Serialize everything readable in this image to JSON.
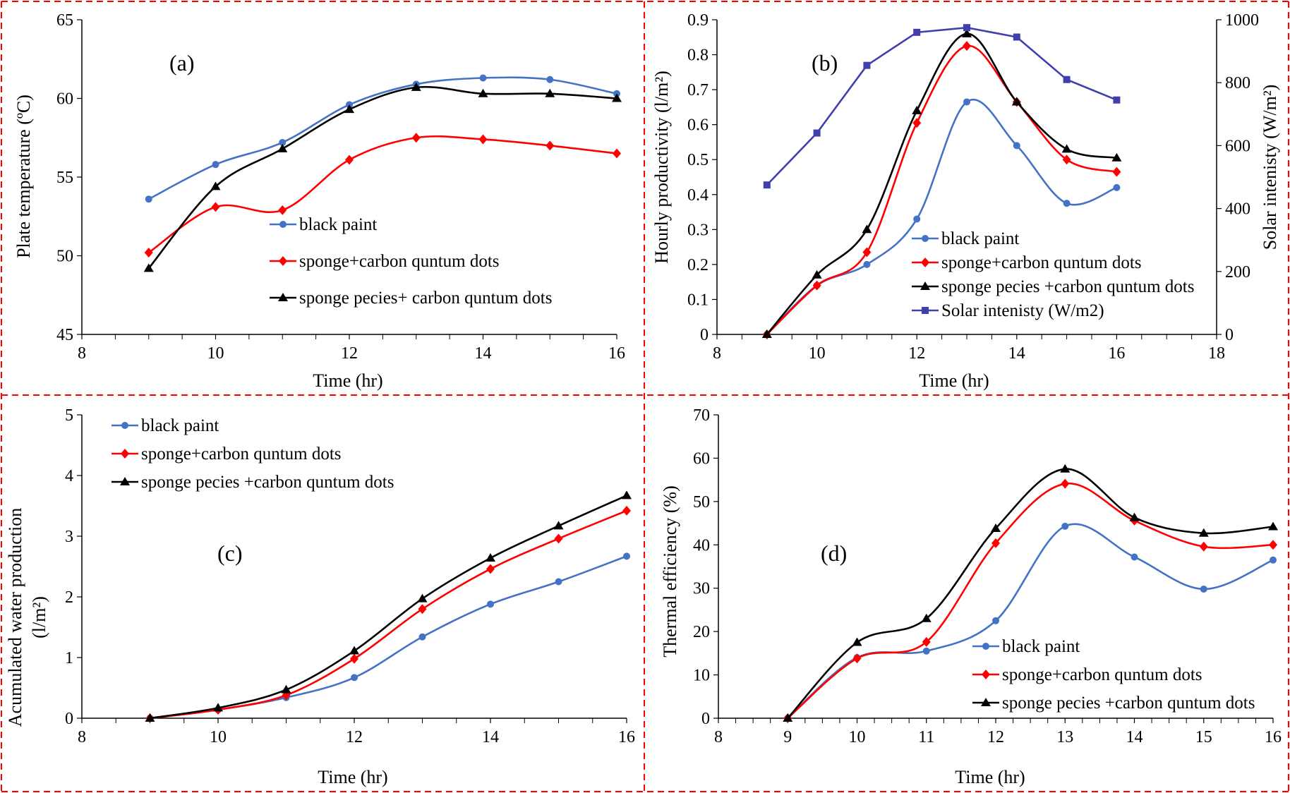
{
  "colors": {
    "blue": "#4472c4",
    "red": "#ff0000",
    "black": "#000000",
    "purple": "#3f3fad",
    "frame": "#ff0000"
  },
  "chart_data": [
    {
      "id": "a",
      "type": "line",
      "panel_label": "(a)",
      "xlabel": "Time (hr)",
      "ylabel": "Plate  temperature (ºC)",
      "xlim": [
        8,
        16
      ],
      "xticks": [
        8,
        10,
        12,
        14,
        16
      ],
      "ylim": [
        45,
        65
      ],
      "yticks": [
        45,
        50,
        55,
        60,
        65
      ],
      "grid": false,
      "legend_position": "center",
      "series": [
        {
          "name": "black paint",
          "color": "#4472c4",
          "marker": "circle",
          "x": [
            9,
            10,
            11,
            12,
            13,
            14,
            15,
            16
          ],
          "y": [
            53.6,
            55.8,
            57.2,
            59.6,
            60.9,
            61.3,
            61.2,
            60.3
          ]
        },
        {
          "name": "sponge+carbon quntum dots",
          "color": "#ff0000",
          "marker": "diamond",
          "x": [
            9,
            10,
            11,
            12,
            13,
            14,
            15,
            16
          ],
          "y": [
            50.2,
            53.1,
            52.9,
            56.1,
            57.5,
            57.4,
            57.0,
            56.5
          ]
        },
        {
          "name": "sponge pecies+ carbon quntum dots",
          "color": "#000000",
          "marker": "triangle",
          "x": [
            9,
            10,
            11,
            12,
            13,
            14,
            15,
            16
          ],
          "y": [
            49.2,
            54.4,
            56.8,
            59.3,
            60.7,
            60.3,
            60.3,
            60.0
          ]
        }
      ]
    },
    {
      "id": "b",
      "type": "line",
      "panel_label": "(b)",
      "xlabel": "Time (hr)",
      "ylabel": "Hourly productivity (l/m²)",
      "y2label": "Solar intenisty (W/m²)",
      "xlim": [
        8,
        18
      ],
      "xticks": [
        8,
        10,
        12,
        14,
        16,
        18
      ],
      "ylim": [
        0,
        0.9
      ],
      "yticks": [
        0,
        0.1,
        0.2,
        0.3,
        0.4,
        0.5,
        0.6,
        0.7,
        0.8,
        0.9
      ],
      "y2lim": [
        0,
        1000
      ],
      "y2ticks": [
        0,
        200,
        400,
        600,
        800,
        1000
      ],
      "grid": false,
      "legend_position": "bottom-center",
      "series": [
        {
          "name": "black paint",
          "color": "#4472c4",
          "marker": "circle",
          "axis": "left",
          "x": [
            9,
            10,
            11,
            12,
            13,
            14,
            15,
            16
          ],
          "y": [
            0,
            0.14,
            0.2,
            0.33,
            0.665,
            0.54,
            0.375,
            0.42
          ]
        },
        {
          "name": "sponge+carbon quntum dots",
          "color": "#ff0000",
          "marker": "diamond",
          "axis": "left",
          "x": [
            9,
            10,
            11,
            12,
            13,
            14,
            15,
            16
          ],
          "y": [
            0,
            0.14,
            0.235,
            0.605,
            0.825,
            0.665,
            0.5,
            0.465
          ]
        },
        {
          "name": "sponge pecies +carbon quntum dots",
          "color": "#000000",
          "marker": "triangle",
          "axis": "left",
          "x": [
            9,
            10,
            11,
            12,
            13,
            14,
            15,
            16
          ],
          "y": [
            0,
            0.17,
            0.3,
            0.64,
            0.86,
            0.665,
            0.53,
            0.505
          ]
        },
        {
          "name": "Solar intenisty (W/m2)",
          "color": "#3f3fad",
          "marker": "square",
          "axis": "right",
          "smooth": false,
          "x": [
            9,
            10,
            11,
            12,
            13,
            14,
            15,
            16
          ],
          "y": [
            475,
            640,
            855,
            960,
            975,
            945,
            810,
            745
          ]
        }
      ]
    },
    {
      "id": "c",
      "type": "line",
      "panel_label": "(c)",
      "xlabel": "Time (hr)",
      "ylabel_line1": "Acumulated water production",
      "ylabel_line2": "(l/m²)",
      "xlim": [
        8,
        16
      ],
      "xticks": [
        8,
        10,
        12,
        14,
        16
      ],
      "ylim": [
        0,
        5
      ],
      "yticks": [
        0,
        1,
        2,
        3,
        4,
        5
      ],
      "grid": false,
      "legend_position": "top-left",
      "series": [
        {
          "name": "black paint",
          "color": "#4472c4",
          "marker": "circle",
          "x": [
            9,
            10,
            11,
            12,
            13,
            14,
            15,
            16
          ],
          "y": [
            0,
            0.14,
            0.34,
            0.67,
            1.34,
            1.88,
            2.25,
            2.67
          ]
        },
        {
          "name": "sponge+carbon quntum dots",
          "color": "#ff0000",
          "marker": "diamond",
          "x": [
            9,
            10,
            11,
            12,
            13,
            14,
            15,
            16
          ],
          "y": [
            0,
            0.14,
            0.38,
            0.98,
            1.8,
            2.46,
            2.96,
            3.42
          ]
        },
        {
          "name": "sponge pecies +carbon quntum dots",
          "color": "#000000",
          "marker": "triangle",
          "x": [
            9,
            10,
            11,
            12,
            13,
            14,
            15,
            16
          ],
          "y": [
            0,
            0.17,
            0.47,
            1.11,
            1.97,
            2.64,
            3.17,
            3.67
          ]
        }
      ]
    },
    {
      "id": "d",
      "type": "line",
      "panel_label": "(d)",
      "xlabel": "Time (hr)",
      "ylabel": "Thermal efficiency (%)",
      "xlim": [
        8,
        16
      ],
      "xticks": [
        8,
        9,
        10,
        11,
        12,
        13,
        14,
        15,
        16
      ],
      "ylim": [
        0,
        70
      ],
      "yticks": [
        0,
        10,
        20,
        30,
        40,
        50,
        60,
        70
      ],
      "grid": false,
      "legend_position": "bottom-right",
      "series": [
        {
          "name": "black paint",
          "color": "#4472c4",
          "marker": "circle",
          "x": [
            9,
            10,
            11,
            12,
            13,
            14,
            15,
            16
          ],
          "y": [
            0,
            14.0,
            15.5,
            22.5,
            44.3,
            37.2,
            29.8,
            36.5
          ]
        },
        {
          "name": "sponge+carbon quntum dots",
          "color": "#ff0000",
          "marker": "diamond",
          "x": [
            9,
            10,
            11,
            12,
            13,
            14,
            15,
            16
          ],
          "y": [
            0,
            13.8,
            17.6,
            40.4,
            54.1,
            45.6,
            39.6,
            40.0
          ]
        },
        {
          "name": "sponge pecies +carbon quntum dots",
          "color": "#000000",
          "marker": "triangle",
          "x": [
            9,
            10,
            11,
            12,
            13,
            14,
            15,
            16
          ],
          "y": [
            0,
            17.5,
            23.0,
            43.8,
            57.5,
            46.3,
            42.7,
            44.2
          ]
        }
      ]
    }
  ]
}
